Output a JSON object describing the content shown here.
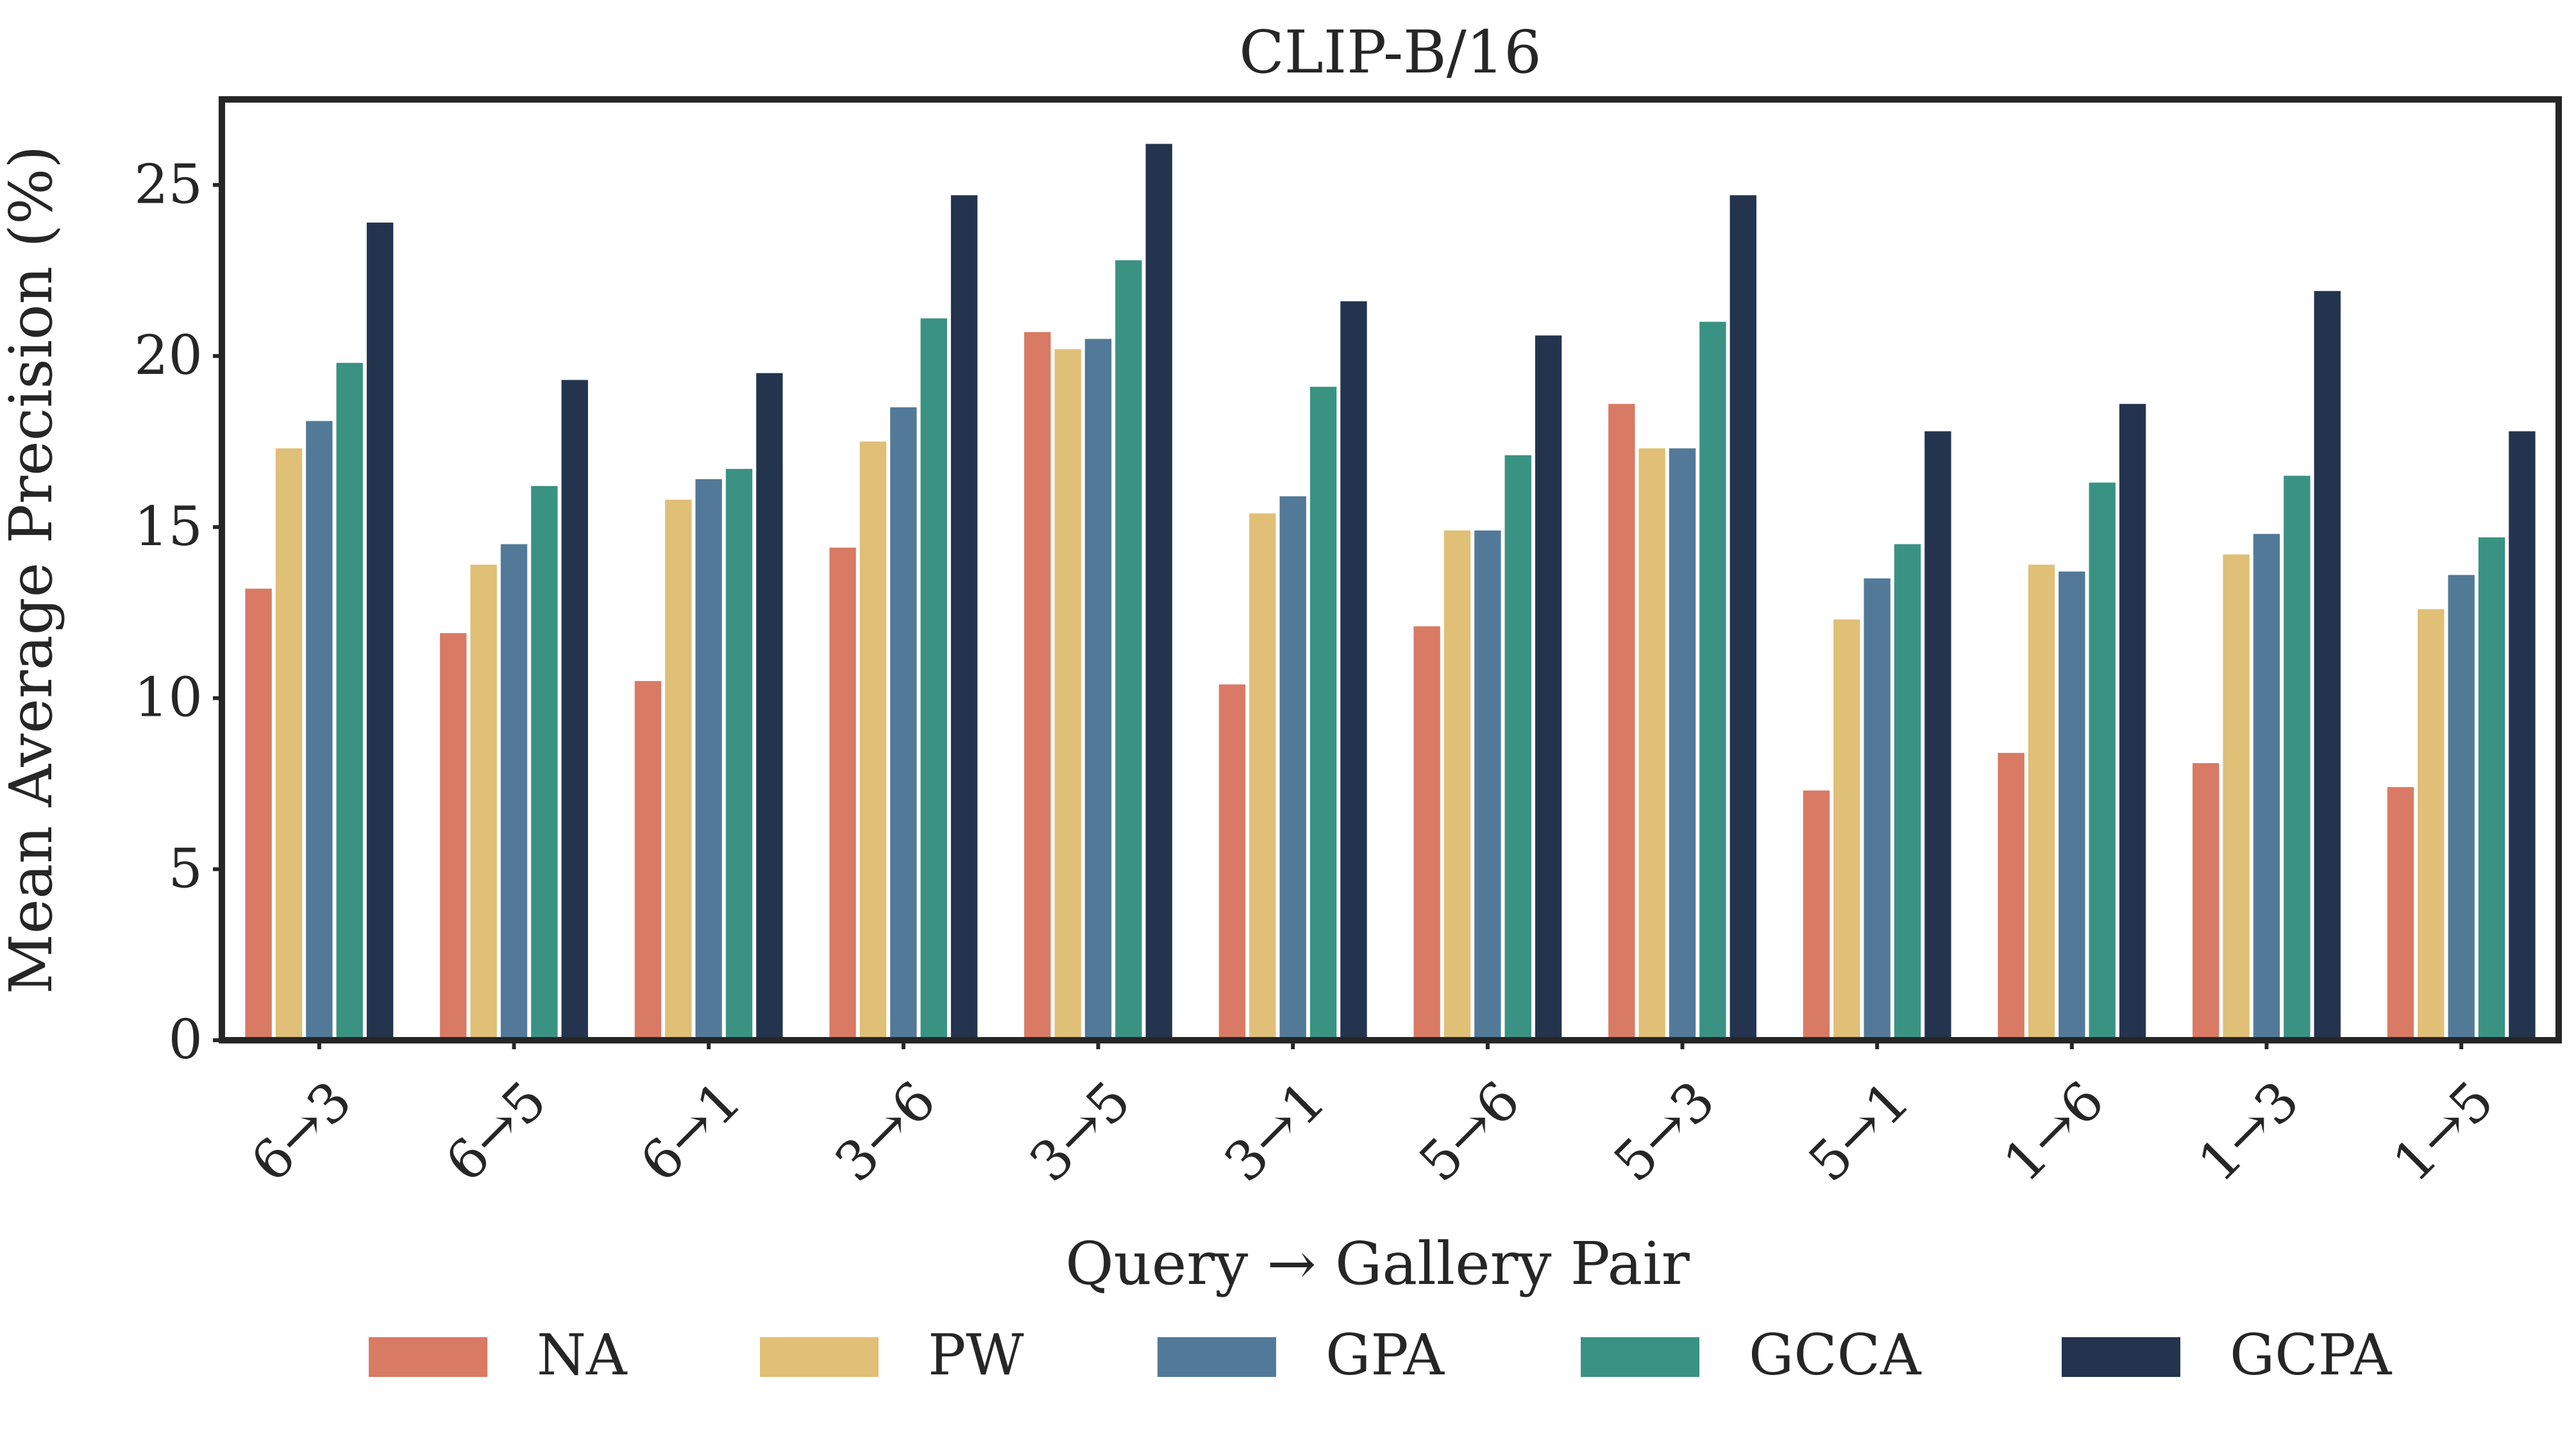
{
  "chart_data": {
    "type": "bar",
    "title": "CLIP-B/16",
    "xlabel": "Query → Gallery Pair",
    "ylabel": "Mean Average Precision (%)",
    "ylim": [
      0,
      27.5
    ],
    "yticks": [
      0,
      5,
      10,
      15,
      20,
      25
    ],
    "grid": false,
    "legend_position": "bottom",
    "categories": [
      "6→3",
      "6→5",
      "6→1",
      "3→6",
      "3→5",
      "3→1",
      "5→6",
      "5→3",
      "5→1",
      "1→6",
      "1→3",
      "1→5"
    ],
    "series": [
      {
        "name": "NA",
        "color": "#d97a64",
        "values": [
          13.2,
          11.9,
          10.5,
          14.4,
          20.7,
          10.4,
          12.1,
          18.6,
          7.3,
          8.4,
          8.1,
          7.4
        ]
      },
      {
        "name": "PW",
        "color": "#e0bf76",
        "values": [
          17.3,
          13.9,
          15.8,
          17.5,
          20.2,
          15.4,
          14.9,
          17.3,
          12.3,
          13.9,
          14.2,
          12.6
        ]
      },
      {
        "name": "GPA",
        "color": "#527a98",
        "values": [
          18.1,
          14.5,
          16.4,
          18.5,
          20.5,
          15.9,
          14.9,
          17.3,
          13.5,
          13.7,
          14.8,
          13.6
        ]
      },
      {
        "name": "GCCA",
        "color": "#3a9283",
        "values": [
          19.8,
          16.2,
          16.7,
          21.1,
          22.8,
          19.1,
          17.1,
          21.0,
          14.5,
          16.3,
          16.5,
          14.7
        ]
      },
      {
        "name": "GCPA",
        "color": "#24344f",
        "values": [
          23.9,
          19.3,
          19.5,
          24.7,
          26.2,
          21.6,
          20.6,
          24.7,
          17.8,
          18.6,
          21.9,
          17.8
        ]
      }
    ]
  }
}
